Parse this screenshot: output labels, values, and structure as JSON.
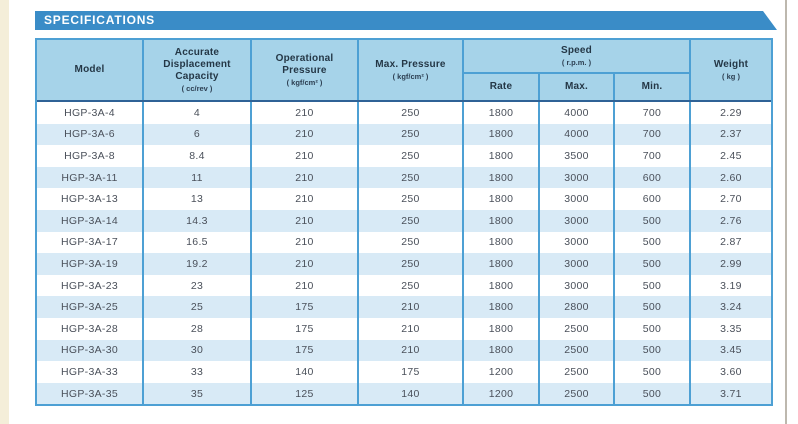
{
  "banner": {
    "title": "SPECIFICATIONS"
  },
  "colors": {
    "banner_bg": "#3a8cc7",
    "banner_text": "#ffffff",
    "header_bg": "#a6d3e9",
    "header_text": "#243746",
    "header_rule": "#2f6296",
    "grid_line": "#4da0d4",
    "row_alt_bg": "#d8eaf6",
    "row_bg": "#ffffff",
    "cell_text": "#4a505a",
    "page_edge": "#f4eed9"
  },
  "table": {
    "header": {
      "model": {
        "label": "Model"
      },
      "capacity": {
        "label": "Accurate Displacement Capacity",
        "sub": "( cc/rev )"
      },
      "operational_pressure": {
        "label": "Operational Pressure",
        "sub": "( kgf/cm² )"
      },
      "max_pressure": {
        "label": "Max. Pressure",
        "sub": "( kgf/cm² )"
      },
      "speed": {
        "label": "Speed",
        "sub": "( r.p.m. )",
        "rate": "Rate",
        "max": "Max.",
        "min": "Min."
      },
      "weight": {
        "label": "Weight",
        "sub": "( kg )"
      }
    },
    "rows": [
      [
        "HGP-3A-4",
        "4",
        "210",
        "250",
        "1800",
        "4000",
        "700",
        "2.29"
      ],
      [
        "HGP-3A-6",
        "6",
        "210",
        "250",
        "1800",
        "4000",
        "700",
        "2.37"
      ],
      [
        "HGP-3A-8",
        "8.4",
        "210",
        "250",
        "1800",
        "3500",
        "700",
        "2.45"
      ],
      [
        "HGP-3A-11",
        "11",
        "210",
        "250",
        "1800",
        "3000",
        "600",
        "2.60"
      ],
      [
        "HGP-3A-13",
        "13",
        "210",
        "250",
        "1800",
        "3000",
        "600",
        "2.70"
      ],
      [
        "HGP-3A-14",
        "14.3",
        "210",
        "250",
        "1800",
        "3000",
        "500",
        "2.76"
      ],
      [
        "HGP-3A-17",
        "16.5",
        "210",
        "250",
        "1800",
        "3000",
        "500",
        "2.87"
      ],
      [
        "HGP-3A-19",
        "19.2",
        "210",
        "250",
        "1800",
        "3000",
        "500",
        "2.99"
      ],
      [
        "HGP-3A-23",
        "23",
        "210",
        "250",
        "1800",
        "3000",
        "500",
        "3.19"
      ],
      [
        "HGP-3A-25",
        "25",
        "175",
        "210",
        "1800",
        "2800",
        "500",
        "3.24"
      ],
      [
        "HGP-3A-28",
        "28",
        "175",
        "210",
        "1800",
        "2500",
        "500",
        "3.35"
      ],
      [
        "HGP-3A-30",
        "30",
        "175",
        "210",
        "1800",
        "2500",
        "500",
        "3.45"
      ],
      [
        "HGP-3A-33",
        "33",
        "140",
        "175",
        "1200",
        "2500",
        "500",
        "3.60"
      ],
      [
        "HGP-3A-35",
        "35",
        "125",
        "140",
        "1200",
        "2500",
        "500",
        "3.71"
      ]
    ]
  }
}
